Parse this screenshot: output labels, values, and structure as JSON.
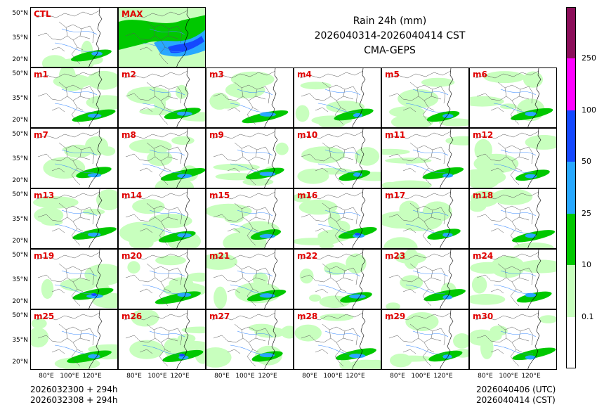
{
  "title": {
    "line1": "Rain 24h (mm)",
    "line2": "2026040314-2026040414 CST",
    "line3": "CMA-GEPS"
  },
  "panels": [
    "CTL",
    "MAX",
    "m1",
    "m2",
    "m3",
    "m4",
    "m5",
    "m6",
    "m7",
    "m8",
    "m9",
    "m10",
    "m11",
    "m12",
    "m13",
    "m14",
    "m15",
    "m16",
    "m17",
    "m18",
    "m19",
    "m20",
    "m21",
    "m22",
    "m23",
    "m24",
    "m25",
    "m26",
    "m27",
    "m28",
    "m29",
    "m30"
  ],
  "axes": {
    "lat_ticks": [
      "50°N",
      "35°N",
      "20°N"
    ],
    "lon_ticks": [
      "80°E",
      "100°E",
      "120°E"
    ]
  },
  "colorbar": {
    "levels": [
      "0.1",
      "10",
      "25",
      "50",
      "100",
      "250"
    ],
    "colors": [
      "#ffffff",
      "#c8ffbe",
      "#00c800",
      "#28a8ff",
      "#1448ff",
      "#ff00ff",
      "#8c0f5a"
    ]
  },
  "footer": {
    "left_line1": "2026032300 + 294h",
    "left_line2": "2026032308 + 294h",
    "right_line1": "2026040406 (UTC)",
    "right_line2": "2026040414 (CST)"
  }
}
